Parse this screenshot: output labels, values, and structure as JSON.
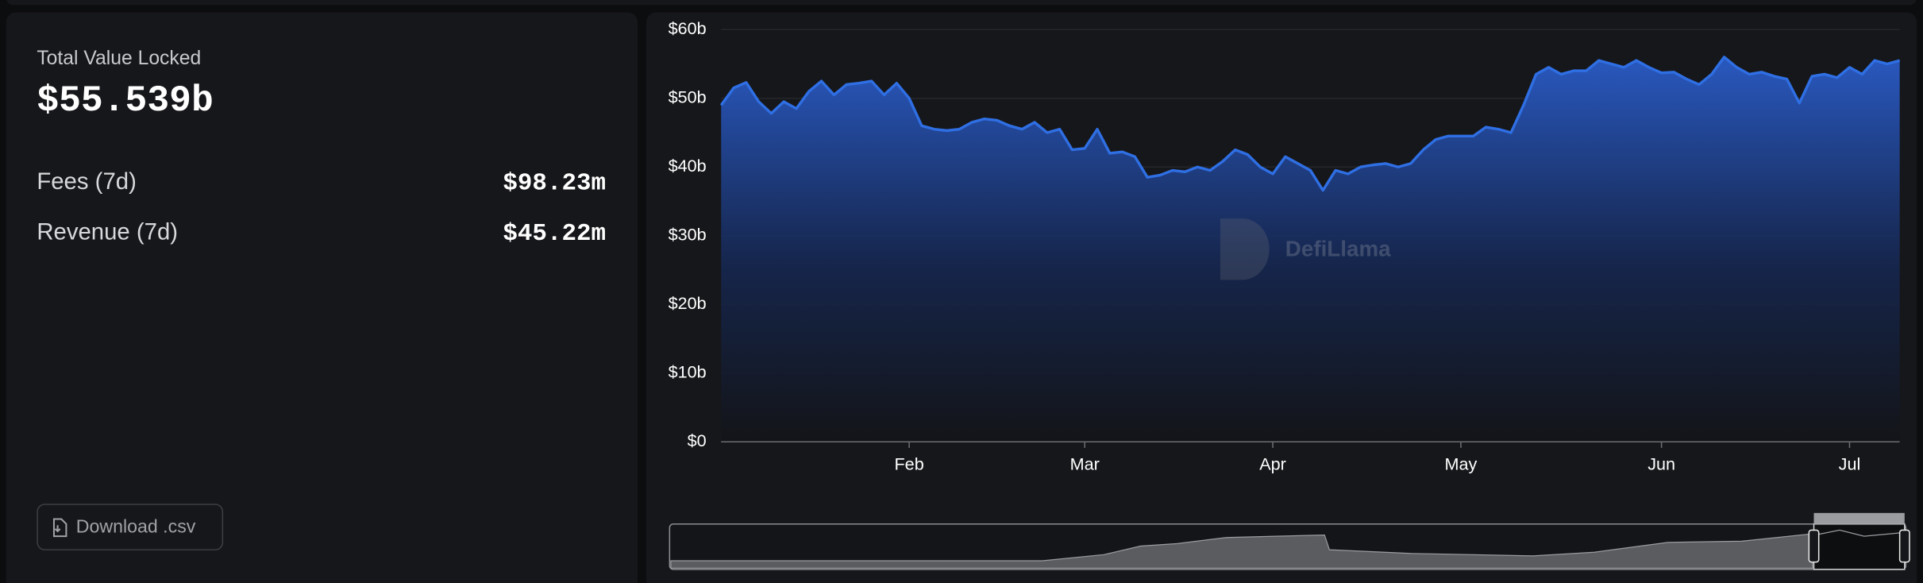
{
  "summary": {
    "tvl_label": "Total Value Locked",
    "tvl_value": "$55.539b",
    "rows": [
      {
        "label": "Fees (7d)",
        "value": "$98.23m"
      },
      {
        "label": "Revenue (7d)",
        "value": "$45.22m"
      }
    ],
    "download": "Download .csv"
  },
  "watermark": "DefiLlama",
  "chart_data": {
    "type": "area",
    "color": "#2f6fe4",
    "grid": true,
    "ylim": [
      0,
      60
    ],
    "yticks": [
      {
        "value": 0,
        "label": "$0"
      },
      {
        "value": 10,
        "label": "$10b"
      },
      {
        "value": 20,
        "label": "$20b"
      },
      {
        "value": 30,
        "label": "$30b"
      },
      {
        "value": 40,
        "label": "$40b"
      },
      {
        "value": 50,
        "label": "$50b"
      },
      {
        "value": 60,
        "label": "$60b"
      }
    ],
    "categories": [
      null,
      null,
      null,
      null,
      null,
      null,
      null,
      null,
      null,
      null,
      null,
      null,
      null,
      null,
      null,
      "Feb",
      null,
      null,
      null,
      null,
      null,
      null,
      null,
      null,
      null,
      null,
      null,
      null,
      null,
      "Mar",
      null,
      null,
      null,
      null,
      null,
      null,
      null,
      null,
      null,
      null,
      null,
      null,
      null,
      null,
      "Apr",
      null,
      null,
      null,
      null,
      null,
      null,
      null,
      null,
      null,
      null,
      null,
      null,
      null,
      null,
      "May",
      null,
      null,
      null,
      null,
      null,
      null,
      null,
      null,
      null,
      null,
      null,
      null,
      null,
      null,
      null,
      "Jun",
      null,
      null,
      null,
      null,
      null,
      null,
      null,
      null,
      null,
      null,
      null,
      null,
      null,
      null,
      "Jul",
      null,
      null,
      null,
      null
    ],
    "values": [
      49,
      51.5,
      52.3,
      49.5,
      47.8,
      49.5,
      48.5,
      51,
      52.5,
      50.5,
      52,
      52.2,
      52.5,
      50.5,
      52.2,
      50,
      46,
      45.5,
      45.3,
      45.5,
      46.5,
      47,
      46.8,
      46,
      45.5,
      46.5,
      45,
      45.5,
      42.5,
      42.7,
      45.5,
      42,
      42.2,
      41.5,
      38.5,
      38.8,
      39.5,
      39.3,
      40,
      39.5,
      40.8,
      42.5,
      41.8,
      40,
      39,
      41.5,
      40.5,
      39.5,
      36.6,
      39.5,
      39,
      40,
      40.3,
      40.5,
      40,
      40.5,
      42.5,
      44,
      44.5,
      44.5,
      44.5,
      45.8,
      45.5,
      45,
      49,
      53.5,
      54.5,
      53.5,
      54,
      54,
      55.5,
      55,
      54.5,
      55.5,
      54.5,
      53.7,
      53.8,
      52.8,
      52,
      53.5,
      56,
      54.5,
      53.5,
      53.8,
      53.2,
      52.8,
      49.3,
      53.2,
      53.5,
      53,
      54.5,
      53.5,
      55.5,
      55,
      55.5
    ]
  }
}
